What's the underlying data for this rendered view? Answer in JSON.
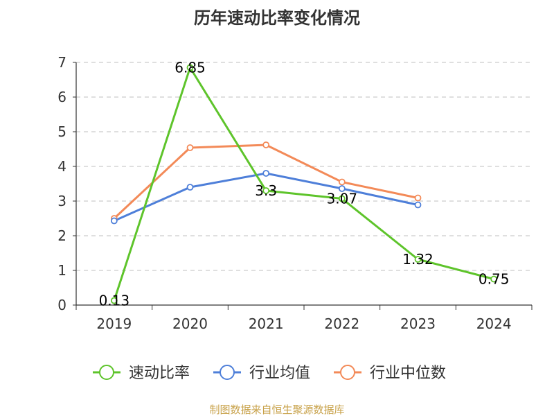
{
  "chart_data": {
    "type": "line",
    "title": "历年速动比率变化情况",
    "categories": [
      "2019",
      "2020",
      "2021",
      "2022",
      "2023",
      "2024"
    ],
    "ylim": [
      0,
      7
    ],
    "yticks": [
      "0",
      "1",
      "2",
      "3",
      "4",
      "5",
      "6",
      "7"
    ],
    "grid": true,
    "legend_position": "bottom",
    "series": [
      {
        "name": "速动比率",
        "color": "#5ec42b",
        "values": [
          0.13,
          6.85,
          3.3,
          3.07,
          1.32,
          0.75
        ],
        "labels": [
          "0.13",
          "6.85",
          "3.3",
          "3.07",
          "1.32",
          "0.75"
        ]
      },
      {
        "name": "行业均值",
        "color": "#4e7fd9",
        "values": [
          2.43,
          3.4,
          3.8,
          3.36,
          2.89,
          null
        ]
      },
      {
        "name": "行业中位数",
        "color": "#f38a58",
        "values": [
          2.5,
          4.54,
          4.62,
          3.55,
          3.09,
          null
        ]
      }
    ]
  },
  "source": "制图数据来自恒生聚源数据库"
}
